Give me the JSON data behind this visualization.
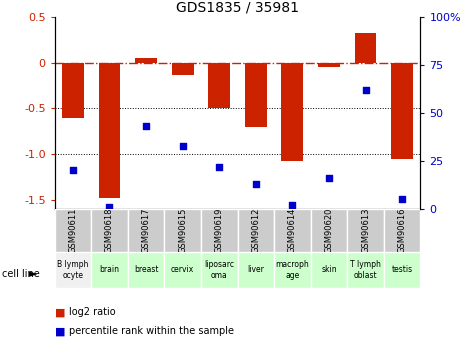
{
  "title": "GDS1835 / 35981",
  "samples": [
    "GSM90611",
    "GSM90618",
    "GSM90617",
    "GSM90615",
    "GSM90619",
    "GSM90612",
    "GSM90614",
    "GSM90620",
    "GSM90613",
    "GSM90616"
  ],
  "cell_lines": [
    "B lymph\nocyte",
    "brain",
    "breast",
    "cervix",
    "liposarc\noma",
    "liver",
    "macroph\nage",
    "skin",
    "T lymph\noblast",
    "testis"
  ],
  "cell_line_colors": [
    "#f0f0f0",
    "#ccffcc",
    "#ccffcc",
    "#ccffcc",
    "#ccffcc",
    "#ccffcc",
    "#ccffcc",
    "#ccffcc",
    "#ccffcc",
    "#ccffcc"
  ],
  "log2_ratios": [
    -0.6,
    -1.48,
    0.05,
    -0.13,
    -0.5,
    -0.7,
    -1.08,
    -0.05,
    0.33,
    -1.05
  ],
  "percentile_ranks": [
    20,
    1,
    43,
    33,
    22,
    13,
    2,
    16,
    62,
    5
  ],
  "ylim_left": [
    -1.6,
    0.5
  ],
  "ylim_right": [
    0,
    100
  ],
  "bar_color": "#cc2200",
  "dot_color": "#0000cc",
  "dashed_line_color": "#cc2200",
  "left_ticks": [
    0.5,
    0.0,
    -0.5,
    -1.0,
    -1.5
  ],
  "right_ticks": [
    100,
    75,
    50,
    25,
    0
  ]
}
